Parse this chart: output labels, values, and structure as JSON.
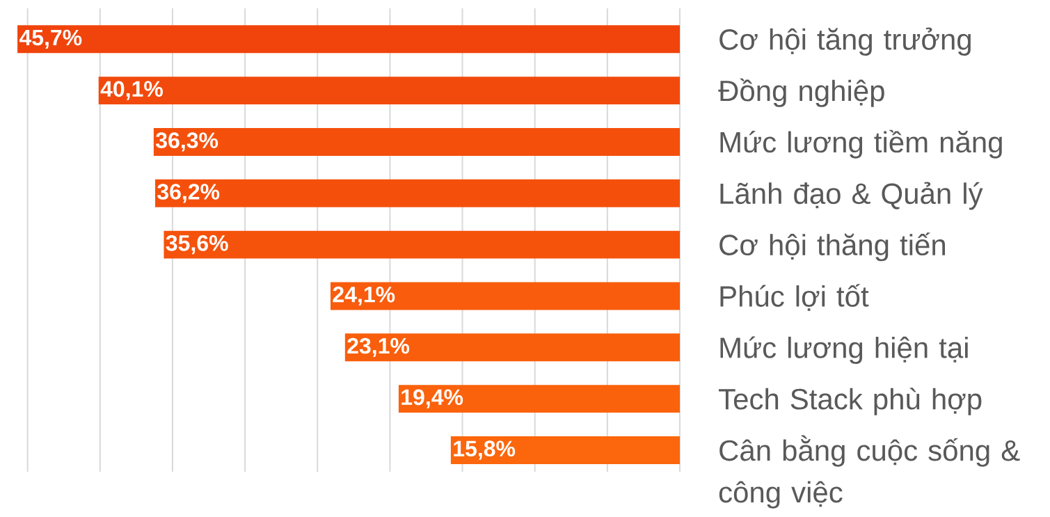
{
  "chart_data": {
    "type": "bar",
    "orientation": "horizontal",
    "categories": [
      "Cơ hội tăng trưởng",
      "Đồng nghiệp",
      "Mức lương tiềm năng",
      "Lãnh đạo & Quản lý",
      "Cơ hội thăng tiến",
      "Phúc lợi tốt",
      "Mức lương hiện tại",
      "Tech Stack phù hợp",
      "Cân bằng cuộc sống & công việc"
    ],
    "values": [
      45.7,
      40.1,
      36.3,
      36.2,
      35.6,
      24.1,
      23.1,
      19.4,
      15.8
    ],
    "value_labels": [
      "45,7%",
      "40,1%",
      "36,3%",
      "36,2%",
      "35,6%",
      "24,1%",
      "23,1%",
      "19,4%",
      "15,8%"
    ],
    "colors": [
      "#f0440c",
      "#f24a0c",
      "#f4500c",
      "#f4500c",
      "#f5520c",
      "#f95c0c",
      "#f95e0c",
      "#fb620c",
      "#fc660c"
    ],
    "grid": "x",
    "tick_labels": "y"
  }
}
